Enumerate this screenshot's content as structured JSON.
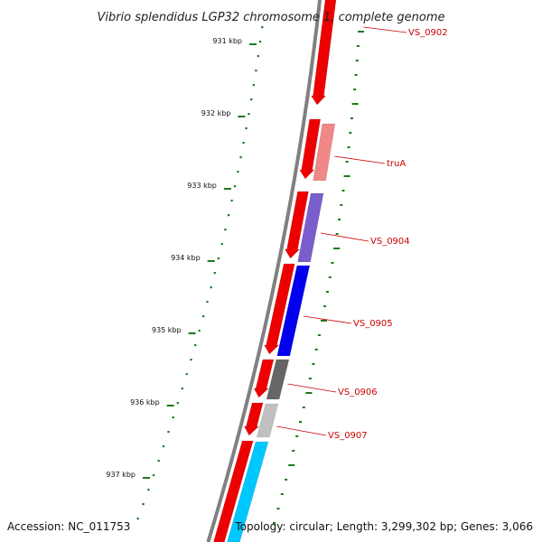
{
  "title": "Vibrio splendidus LGP32 chromosome 1, complete genome",
  "footer": {
    "accession": "Accession: NC_011753",
    "summary": "Topology: circular; Length: 3,299,302 bp; Genes: 3,066"
  },
  "ruler": {
    "tick_color": "#1a7a1a",
    "labels": [
      "931 kbp",
      "932 kbp",
      "933 kbp",
      "934 kbp",
      "935 kbp",
      "936 kbp",
      "937 kbp"
    ]
  },
  "backbone_color": "#808080",
  "genes": [
    {
      "label": "VS_0902",
      "color": "#ee0000"
    },
    {
      "label": "truA",
      "color": "#f08888"
    },
    {
      "label": "VS_0904",
      "color": "#7a5fcc"
    },
    {
      "label": "VS_0905",
      "color": "#0000ee"
    },
    {
      "label": "VS_0906",
      "color": "#666666"
    },
    {
      "label": "VS_0907",
      "color": "#c0c0c0"
    }
  ],
  "extra_gene_colors": {
    "red": "#ee0000",
    "cyan": "#00c8ff"
  }
}
